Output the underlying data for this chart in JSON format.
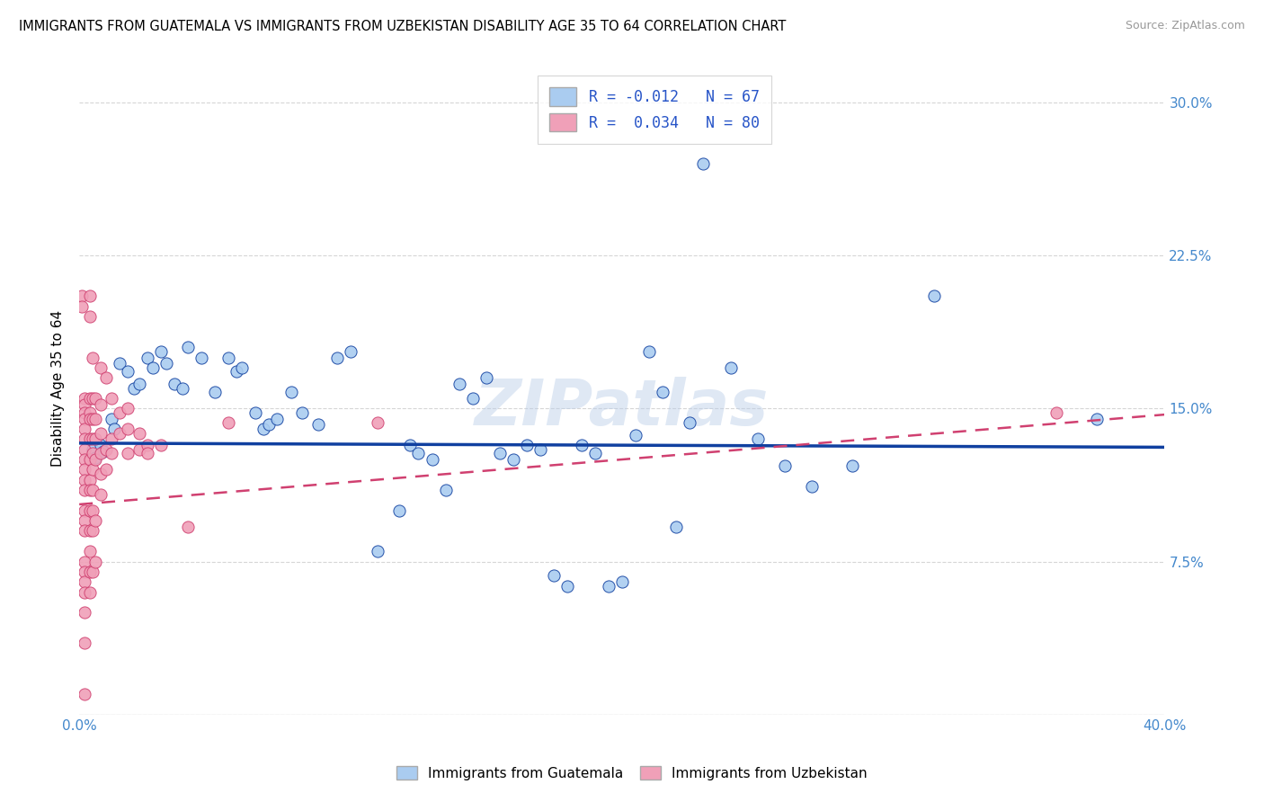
{
  "title": "IMMIGRANTS FROM GUATEMALA VS IMMIGRANTS FROM UZBEKISTAN DISABILITY AGE 35 TO 64 CORRELATION CHART",
  "source": "Source: ZipAtlas.com",
  "ylabel": "Disability Age 35 to 64",
  "xlim": [
    0.0,
    0.4
  ],
  "ylim": [
    0.0,
    0.32
  ],
  "xticks": [
    0.0,
    0.05,
    0.1,
    0.15,
    0.2,
    0.25,
    0.3,
    0.35,
    0.4
  ],
  "yticks": [
    0.0,
    0.075,
    0.15,
    0.225,
    0.3
  ],
  "ytick_labels_right": [
    "",
    "7.5%",
    "15.0%",
    "22.5%",
    "30.0%"
  ],
  "R1": -0.012,
  "N1": 67,
  "R2": 0.034,
  "N2": 80,
  "color_blue": "#aaccf0",
  "color_pink": "#f0a0b8",
  "line_color_blue": "#1040a0",
  "line_color_pink": "#d04070",
  "watermark": "ZIPatlas",
  "legend_color_text": "#2855c8",
  "title_fontsize": 10.5,
  "axis_label_color": "#4488cc",
  "blue_line_y0": 0.133,
  "blue_line_y1": 0.131,
  "pink_line_y0": 0.103,
  "pink_line_y1": 0.147,
  "blue_scatter": [
    [
      0.005,
      0.13
    ],
    [
      0.006,
      0.126
    ],
    [
      0.008,
      0.132
    ],
    [
      0.009,
      0.129
    ],
    [
      0.012,
      0.145
    ],
    [
      0.013,
      0.14
    ],
    [
      0.015,
      0.172
    ],
    [
      0.018,
      0.168
    ],
    [
      0.02,
      0.16
    ],
    [
      0.022,
      0.162
    ],
    [
      0.025,
      0.175
    ],
    [
      0.027,
      0.17
    ],
    [
      0.03,
      0.178
    ],
    [
      0.032,
      0.172
    ],
    [
      0.035,
      0.162
    ],
    [
      0.038,
      0.16
    ],
    [
      0.04,
      0.18
    ],
    [
      0.045,
      0.175
    ],
    [
      0.05,
      0.158
    ],
    [
      0.055,
      0.175
    ],
    [
      0.058,
      0.168
    ],
    [
      0.06,
      0.17
    ],
    [
      0.065,
      0.148
    ],
    [
      0.068,
      0.14
    ],
    [
      0.07,
      0.142
    ],
    [
      0.073,
      0.145
    ],
    [
      0.078,
      0.158
    ],
    [
      0.082,
      0.148
    ],
    [
      0.088,
      0.142
    ],
    [
      0.095,
      0.175
    ],
    [
      0.1,
      0.178
    ],
    [
      0.11,
      0.08
    ],
    [
      0.118,
      0.1
    ],
    [
      0.122,
      0.132
    ],
    [
      0.125,
      0.128
    ],
    [
      0.13,
      0.125
    ],
    [
      0.135,
      0.11
    ],
    [
      0.14,
      0.162
    ],
    [
      0.145,
      0.155
    ],
    [
      0.15,
      0.165
    ],
    [
      0.155,
      0.128
    ],
    [
      0.16,
      0.125
    ],
    [
      0.165,
      0.132
    ],
    [
      0.17,
      0.13
    ],
    [
      0.175,
      0.068
    ],
    [
      0.18,
      0.063
    ],
    [
      0.185,
      0.132
    ],
    [
      0.19,
      0.128
    ],
    [
      0.195,
      0.063
    ],
    [
      0.2,
      0.065
    ],
    [
      0.205,
      0.137
    ],
    [
      0.21,
      0.178
    ],
    [
      0.215,
      0.158
    ],
    [
      0.22,
      0.092
    ],
    [
      0.225,
      0.143
    ],
    [
      0.23,
      0.27
    ],
    [
      0.24,
      0.17
    ],
    [
      0.25,
      0.135
    ],
    [
      0.26,
      0.122
    ],
    [
      0.27,
      0.112
    ],
    [
      0.285,
      0.122
    ],
    [
      0.315,
      0.205
    ],
    [
      0.375,
      0.145
    ]
  ],
  "pink_scatter": [
    [
      0.001,
      0.205
    ],
    [
      0.001,
      0.2
    ],
    [
      0.002,
      0.155
    ],
    [
      0.002,
      0.152
    ],
    [
      0.002,
      0.148
    ],
    [
      0.002,
      0.145
    ],
    [
      0.002,
      0.14
    ],
    [
      0.002,
      0.135
    ],
    [
      0.002,
      0.13
    ],
    [
      0.002,
      0.125
    ],
    [
      0.002,
      0.12
    ],
    [
      0.002,
      0.115
    ],
    [
      0.002,
      0.11
    ],
    [
      0.002,
      0.1
    ],
    [
      0.002,
      0.095
    ],
    [
      0.002,
      0.09
    ],
    [
      0.002,
      0.075
    ],
    [
      0.002,
      0.07
    ],
    [
      0.002,
      0.065
    ],
    [
      0.002,
      0.06
    ],
    [
      0.002,
      0.05
    ],
    [
      0.002,
      0.035
    ],
    [
      0.002,
      0.01
    ],
    [
      0.004,
      0.205
    ],
    [
      0.004,
      0.195
    ],
    [
      0.004,
      0.155
    ],
    [
      0.004,
      0.148
    ],
    [
      0.004,
      0.145
    ],
    [
      0.004,
      0.135
    ],
    [
      0.004,
      0.125
    ],
    [
      0.004,
      0.115
    ],
    [
      0.004,
      0.11
    ],
    [
      0.004,
      0.1
    ],
    [
      0.004,
      0.09
    ],
    [
      0.004,
      0.08
    ],
    [
      0.004,
      0.07
    ],
    [
      0.004,
      0.06
    ],
    [
      0.005,
      0.175
    ],
    [
      0.005,
      0.155
    ],
    [
      0.005,
      0.145
    ],
    [
      0.005,
      0.135
    ],
    [
      0.005,
      0.128
    ],
    [
      0.005,
      0.12
    ],
    [
      0.005,
      0.11
    ],
    [
      0.005,
      0.1
    ],
    [
      0.005,
      0.09
    ],
    [
      0.005,
      0.07
    ],
    [
      0.006,
      0.155
    ],
    [
      0.006,
      0.145
    ],
    [
      0.006,
      0.135
    ],
    [
      0.006,
      0.125
    ],
    [
      0.006,
      0.095
    ],
    [
      0.006,
      0.075
    ],
    [
      0.008,
      0.17
    ],
    [
      0.008,
      0.152
    ],
    [
      0.008,
      0.138
    ],
    [
      0.008,
      0.128
    ],
    [
      0.008,
      0.118
    ],
    [
      0.008,
      0.108
    ],
    [
      0.01,
      0.165
    ],
    [
      0.01,
      0.13
    ],
    [
      0.01,
      0.12
    ],
    [
      0.012,
      0.155
    ],
    [
      0.012,
      0.135
    ],
    [
      0.012,
      0.128
    ],
    [
      0.015,
      0.148
    ],
    [
      0.015,
      0.138
    ],
    [
      0.018,
      0.15
    ],
    [
      0.018,
      0.14
    ],
    [
      0.018,
      0.128
    ],
    [
      0.022,
      0.138
    ],
    [
      0.022,
      0.13
    ],
    [
      0.025,
      0.132
    ],
    [
      0.025,
      0.128
    ],
    [
      0.03,
      0.132
    ],
    [
      0.04,
      0.092
    ],
    [
      0.055,
      0.143
    ],
    [
      0.11,
      0.143
    ],
    [
      0.36,
      0.148
    ]
  ]
}
